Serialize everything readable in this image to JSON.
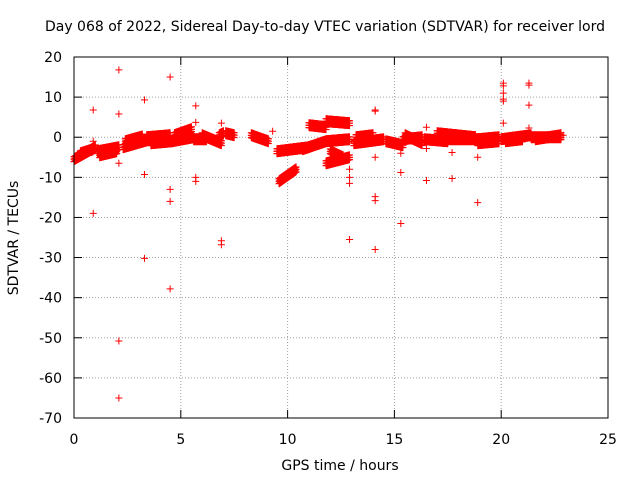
{
  "chart_data": {
    "type": "scatter",
    "title": "Day 068 of 2022, Sidereal Day-to-day VTEC variation (SDTVAR) for receiver lord",
    "xlabel": "GPS time / hours",
    "ylabel": "SDTVAR / TECUs",
    "xlim": [
      0,
      25
    ],
    "ylim": [
      -70,
      20
    ],
    "xticks": [
      0,
      5,
      10,
      15,
      20,
      25
    ],
    "yticks": [
      20,
      10,
      0,
      -10,
      -20,
      -30,
      -40,
      -50,
      -60,
      -70
    ],
    "grid": true,
    "marker": "+",
    "color": "#ff0000",
    "dense_segments": [
      {
        "x0": 0.0,
        "y0": -5.5,
        "x1": 1.0,
        "y1": -2.5
      },
      {
        "x0": 0.3,
        "y0": -4.0,
        "x1": 0.9,
        "y1": -3.0
      },
      {
        "x0": 1.1,
        "y0": -3.5,
        "x1": 2.1,
        "y1": -2.5
      },
      {
        "x0": 1.2,
        "y0": -4.5,
        "x1": 2.0,
        "y1": -3.5
      },
      {
        "x0": 2.3,
        "y0": -2.5,
        "x1": 3.6,
        "y1": -0.5
      },
      {
        "x0": 2.4,
        "y0": -1.0,
        "x1": 3.2,
        "y1": 0.2
      },
      {
        "x0": 3.6,
        "y0": -1.5,
        "x1": 4.6,
        "y1": -1.0
      },
      {
        "x0": 3.4,
        "y0": 0.0,
        "x1": 4.5,
        "y1": 0.5
      },
      {
        "x0": 4.7,
        "y0": 0.5,
        "x1": 5.5,
        "y1": 2.0
      },
      {
        "x0": 4.6,
        "y0": -1.0,
        "x1": 5.6,
        "y1": 0.0
      },
      {
        "x0": 5.6,
        "y0": -0.5,
        "x1": 6.2,
        "y1": -0.5
      },
      {
        "x0": 6.0,
        "y0": 0.5,
        "x1": 6.9,
        "y1": -1.5
      },
      {
        "x0": 6.8,
        "y0": 0.5,
        "x1": 7.0,
        "y1": 1.0
      },
      {
        "x0": 7.1,
        "y0": 1.0,
        "x1": 7.5,
        "y1": 0.5
      },
      {
        "x0": 8.3,
        "y0": 0.5,
        "x1": 9.1,
        "y1": -1.0
      },
      {
        "x0": 9.5,
        "y0": -3.5,
        "x1": 11.0,
        "y1": -2.5
      },
      {
        "x0": 9.6,
        "y0": -11.0,
        "x1": 10.4,
        "y1": -8.0
      },
      {
        "x0": 10.7,
        "y0": -3.0,
        "x1": 11.8,
        "y1": -1.0
      },
      {
        "x0": 11.0,
        "y0": 3.0,
        "x1": 11.8,
        "y1": 2.5
      },
      {
        "x0": 11.8,
        "y0": 4.0,
        "x1": 12.9,
        "y1": 3.5
      },
      {
        "x0": 11.8,
        "y0": -1.0,
        "x1": 12.9,
        "y1": -0.5
      },
      {
        "x0": 11.8,
        "y0": -6.5,
        "x1": 12.9,
        "y1": -5.0
      },
      {
        "x0": 12.0,
        "y0": -3.5,
        "x1": 12.6,
        "y1": -5.0
      },
      {
        "x0": 13.1,
        "y0": -1.5,
        "x1": 14.5,
        "y1": -0.5
      },
      {
        "x0": 13.2,
        "y0": 0.0,
        "x1": 14.0,
        "y1": 0.5
      },
      {
        "x0": 14.6,
        "y0": -1.0,
        "x1": 15.4,
        "y1": -2.0
      },
      {
        "x0": 15.4,
        "y0": -0.5,
        "x1": 16.3,
        "y1": 0.0
      },
      {
        "x0": 15.5,
        "y0": 0.5,
        "x1": 16.3,
        "y1": -1.5
      },
      {
        "x0": 16.4,
        "y0": -0.5,
        "x1": 17.5,
        "y1": -1.0
      },
      {
        "x0": 17.0,
        "y0": 1.0,
        "x1": 18.8,
        "y1": 0.0
      },
      {
        "x0": 17.5,
        "y0": -0.5,
        "x1": 18.9,
        "y1": -0.5
      },
      {
        "x0": 18.9,
        "y0": -1.5,
        "x1": 19.9,
        "y1": -1.0
      },
      {
        "x0": 18.9,
        "y0": -0.5,
        "x1": 19.9,
        "y1": 0.0
      },
      {
        "x0": 20.0,
        "y0": -0.5,
        "x1": 21.4,
        "y1": 0.5
      },
      {
        "x0": 20.2,
        "y0": -1.0,
        "x1": 21.0,
        "y1": -0.5
      },
      {
        "x0": 21.4,
        "y0": 0.0,
        "x1": 22.8,
        "y1": 0.0
      },
      {
        "x0": 21.6,
        "y0": -0.5,
        "x1": 22.8,
        "y1": 0.5
      }
    ],
    "outliers": [
      {
        "x": 0.9,
        "y": 6.8
      },
      {
        "x": 0.9,
        "y": -1.0
      },
      {
        "x": 0.9,
        "y": -19.0
      },
      {
        "x": 2.1,
        "y": 16.8
      },
      {
        "x": 2.1,
        "y": 5.8
      },
      {
        "x": 2.1,
        "y": -6.5
      },
      {
        "x": 2.1,
        "y": -50.8
      },
      {
        "x": 2.1,
        "y": -65.0
      },
      {
        "x": 3.3,
        "y": 9.3
      },
      {
        "x": 3.3,
        "y": -9.3
      },
      {
        "x": 3.3,
        "y": -30.2
      },
      {
        "x": 4.5,
        "y": 15.0
      },
      {
        "x": 4.5,
        "y": -13.0
      },
      {
        "x": 4.5,
        "y": -16.0
      },
      {
        "x": 4.5,
        "y": -37.8
      },
      {
        "x": 5.7,
        "y": 7.8
      },
      {
        "x": 5.7,
        "y": 3.7
      },
      {
        "x": 5.7,
        "y": -10.0
      },
      {
        "x": 5.7,
        "y": -11.0
      },
      {
        "x": 6.9,
        "y": 3.5
      },
      {
        "x": 6.9,
        "y": -25.8
      },
      {
        "x": 6.9,
        "y": -26.8
      },
      {
        "x": 12.9,
        "y": -8.0
      },
      {
        "x": 12.9,
        "y": -10.0
      },
      {
        "x": 12.9,
        "y": -11.5
      },
      {
        "x": 12.9,
        "y": -25.5
      },
      {
        "x": 14.1,
        "y": 6.8
      },
      {
        "x": 14.1,
        "y": 6.5
      },
      {
        "x": 14.1,
        "y": -5.0
      },
      {
        "x": 14.1,
        "y": -14.8
      },
      {
        "x": 14.1,
        "y": -15.8
      },
      {
        "x": 14.1,
        "y": -28.0
      },
      {
        "x": 15.3,
        "y": -4.0
      },
      {
        "x": 15.3,
        "y": -8.8
      },
      {
        "x": 15.3,
        "y": -21.5
      },
      {
        "x": 16.5,
        "y": 2.5
      },
      {
        "x": 16.5,
        "y": -2.8
      },
      {
        "x": 16.5,
        "y": -10.8
      },
      {
        "x": 17.7,
        "y": -3.8
      },
      {
        "x": 17.7,
        "y": -10.3
      },
      {
        "x": 18.9,
        "y": -5.0
      },
      {
        "x": 18.9,
        "y": -16.3
      },
      {
        "x": 20.1,
        "y": 13.5
      },
      {
        "x": 20.1,
        "y": 12.8
      },
      {
        "x": 20.1,
        "y": 11.0
      },
      {
        "x": 20.1,
        "y": 9.5
      },
      {
        "x": 20.1,
        "y": 9.0
      },
      {
        "x": 20.1,
        "y": 3.5
      },
      {
        "x": 21.3,
        "y": 13.5
      },
      {
        "x": 21.3,
        "y": 13.0
      },
      {
        "x": 21.3,
        "y": 8.0
      },
      {
        "x": 21.3,
        "y": 2.3
      },
      {
        "x": 9.3,
        "y": 1.5
      },
      {
        "x": 7.2,
        "y": 1.0
      },
      {
        "x": 22.9,
        "y": 0.5
      }
    ]
  }
}
